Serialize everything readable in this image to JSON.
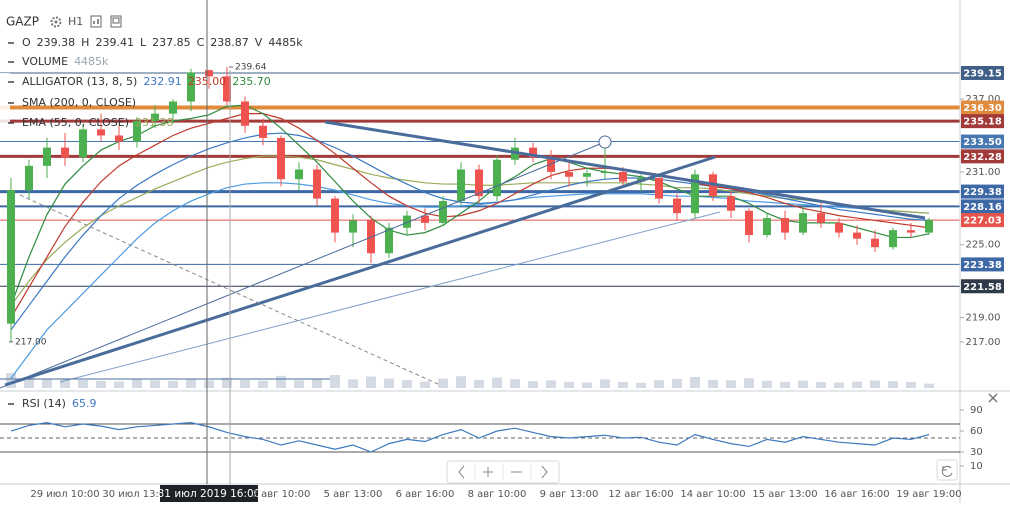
{
  "symbol": "GAZP",
  "interval": "H1",
  "chart_data": {
    "type": "candlestick",
    "x": [
      null,
      null,
      null,
      "29 июл 10:00",
      null,
      null,
      null,
      "30 июл 13:00",
      null,
      null,
      null,
      "31 июл 2019 16:00",
      null,
      null,
      null,
      "2 авг 10:00",
      null,
      null,
      null,
      "5 авг 13:00",
      null,
      null,
      null,
      "6 авг 16:00",
      null,
      null,
      null,
      "8 авг 10:00",
      null,
      null,
      null,
      "9 авг 13:00",
      null,
      null,
      null,
      "12 авг 16:00",
      null,
      null,
      null,
      "14 авг 10:00",
      null,
      null,
      null,
      "15 авг 13:00",
      null,
      null,
      null,
      "16 авг 16:00",
      null,
      null,
      null,
      "19 авг 19:00"
    ],
    "ohlc_labels": [
      "O",
      "H",
      "L",
      "C",
      "V"
    ],
    "ohlc": {
      "open": [
        218.5,
        229.5,
        231.5,
        233.0,
        232.2,
        234.5,
        234.0,
        233.5,
        235.2,
        235.8,
        236.8,
        239.38,
        238.87,
        236.8,
        234.8,
        233.8,
        230.4,
        231.2,
        228.8,
        226.0,
        227.0,
        224.3,
        226.4,
        227.4,
        226.8,
        228.6,
        231.2,
        229.0,
        232.0,
        233.0,
        232.2,
        231.0,
        230.6,
        230.9,
        231.0,
        230.2,
        230.5,
        228.8,
        227.6,
        230.8,
        229.0,
        227.8,
        225.8,
        227.2,
        226.0,
        227.6,
        226.8,
        226.0,
        225.5,
        224.8,
        226.2,
        226.0
      ],
      "high": [
        230.5,
        232.0,
        233.8,
        234.2,
        235.0,
        235.8,
        234.8,
        235.5,
        236.5,
        237.0,
        239.5,
        239.41,
        239.64,
        237.2,
        235.4,
        234.0,
        231.8,
        231.6,
        229.0,
        227.5,
        227.4,
        226.8,
        227.8,
        228.0,
        229.0,
        231.8,
        231.6,
        232.4,
        233.8,
        233.4,
        232.8,
        231.8,
        231.2,
        233.6,
        231.4,
        230.8,
        230.8,
        229.2,
        231.2,
        231.0,
        229.4,
        228.0,
        227.6,
        227.8,
        228.2,
        228.4,
        227.2,
        226.6,
        226.2,
        226.4,
        226.8,
        227.2
      ],
      "low": [
        217.0,
        228.8,
        230.5,
        231.5,
        231.8,
        233.5,
        232.8,
        233.0,
        234.6,
        235.0,
        236.0,
        237.85,
        236.5,
        234.2,
        233.2,
        229.8,
        229.5,
        228.2,
        225.2,
        224.8,
        223.5,
        223.9,
        225.8,
        226.2,
        226.5,
        228.2,
        228.4,
        228.6,
        231.6,
        231.8,
        230.4,
        229.8,
        229.8,
        230.4,
        229.8,
        229.4,
        228.4,
        227.0,
        227.2,
        228.6,
        227.2,
        225.2,
        225.6,
        225.4,
        225.8,
        226.4,
        225.6,
        225.0,
        224.4,
        224.6,
        225.6,
        225.8
      ],
      "close": [
        229.5,
        231.5,
        233.0,
        232.2,
        234.5,
        234.0,
        233.5,
        235.2,
        235.8,
        236.8,
        239.2,
        238.87,
        236.8,
        234.8,
        233.8,
        230.4,
        231.2,
        228.8,
        226.0,
        227.0,
        224.3,
        226.4,
        227.4,
        226.8,
        228.6,
        231.2,
        229.0,
        232.0,
        233.0,
        232.2,
        231.0,
        230.6,
        230.9,
        231.0,
        230.2,
        230.5,
        228.8,
        227.6,
        230.8,
        229.0,
        227.8,
        225.8,
        227.2,
        226.0,
        227.6,
        226.8,
        226.0,
        225.5,
        224.8,
        226.2,
        226.0,
        227.03
      ]
    },
    "colors": {
      "up": "#4caf50",
      "down": "#ef5350"
    },
    "ylim": [
      213.2,
      245.16
    ],
    "yticks": [
      {
        "value": 217,
        "label": "217.00"
      },
      {
        "value": 219,
        "label": "219.00"
      },
      {
        "value": 225,
        "label": "225.00"
      },
      {
        "value": 231,
        "label": "231.00"
      },
      {
        "value": 237,
        "label": "237.00"
      }
    ],
    "levels": [
      {
        "value": 239.15,
        "color": "#3f5f86"
      },
      {
        "value": 236.3,
        "label": "236.30",
        "color": "#e08a3c"
      },
      {
        "value": 235.18,
        "color": "#a33a3a"
      },
      {
        "value": 233.5,
        "label": "233.50",
        "color": "#4677b0"
      },
      {
        "value": 232.28,
        "color": "#a33a3a"
      },
      {
        "value": 229.38,
        "color": "#3d68a5"
      },
      {
        "value": 228.16,
        "color": "#3d68a5"
      },
      {
        "value": 227.03,
        "color": "#e5534b"
      },
      {
        "value": 223.38,
        "color": "#3d68a5"
      },
      {
        "value": 221.58,
        "color": "#2f3b4a"
      }
    ],
    "annotations": [
      {
        "value": 239.64
      },
      {
        "value": 217,
        "label": "217.00"
      }
    ],
    "volume": {
      "name": "VOLUME",
      "color": "#d3dae3",
      "ylim": [
        0,
        36000
      ],
      "legend": {
        "value": 4485,
        "label": "4485k"
      },
      "values": [
        9000,
        6500,
        5200,
        5800,
        4800,
        4200,
        3900,
        5100,
        4600,
        4300,
        5200,
        4485,
        6200,
        4800,
        4400,
        7300,
        4600,
        5400,
        7800,
        5200,
        6900,
        5600,
        4700,
        3800,
        5600,
        7100,
        4900,
        6200,
        5300,
        4100,
        4600,
        3700,
        3300,
        5200,
        3600,
        3100,
        4700,
        5400,
        6600,
        4900,
        4600,
        5900,
        4300,
        3700,
        4400,
        3500,
        3300,
        3800,
        4500,
        4100,
        3600,
        2600
      ]
    },
    "alligator": {
      "name": "ALLIGATOR (13, 8, 5)",
      "legend": [
        232.91,
        {
          "value": 235,
          "label": "235.00"
        },
        {
          "value": 235.7,
          "label": "235.70"
        }
      ],
      "series": [
        {
          "color": "#3b78c4",
          "values": [
            218,
            220,
            222,
            224,
            225.8,
            227.4,
            228.8,
            229.9,
            230.8,
            231.6,
            232.3,
            232.91,
            233.4,
            233.8,
            234.1,
            234.2,
            234.0,
            233.6,
            233.0,
            232.3,
            231.5,
            230.7,
            230.0,
            229.3,
            228.8,
            228.5,
            228.4,
            228.5,
            228.7,
            229.1,
            229.5,
            229.9,
            230.2,
            230.4,
            230.5,
            230.5,
            230.4,
            230.2,
            230.0,
            229.8,
            229.6,
            229.4,
            229.1,
            228.8,
            228.5,
            228.2,
            227.9,
            227.7,
            227.5,
            227.3,
            227.1,
            227.0
          ]
        },
        {
          "color": "#c0392b",
          "values": [
            219,
            221.5,
            224,
            226.5,
            228.5,
            230.2,
            231.5,
            232.4,
            233.2,
            234.0,
            234.6,
            235.0,
            235.4,
            235.8,
            235.8,
            235.4,
            234.6,
            233.6,
            232.5,
            231.3,
            230.1,
            229.0,
            228.2,
            227.6,
            227.3,
            227.4,
            227.8,
            228.4,
            229.2,
            230.0,
            230.7,
            231.1,
            231.3,
            231.3,
            231.2,
            231.0,
            230.8,
            230.5,
            230.1,
            229.8,
            229.6,
            229.3,
            228.9,
            228.4,
            228.0,
            227.7,
            227.4,
            227.2,
            227.0,
            226.8,
            226.6,
            226.4
          ]
        },
        {
          "color": "#2e8b3e",
          "values": [
            220,
            224,
            227.5,
            230,
            231.5,
            232.8,
            233.5,
            234.0,
            234.8,
            235.2,
            235.4,
            235.7,
            236.4,
            236.5,
            235.8,
            234.6,
            233.2,
            231.8,
            230.2,
            228.6,
            227.2,
            226.2,
            225.8,
            226.0,
            226.6,
            227.6,
            228.6,
            229.8,
            230.6,
            231.6,
            232.1,
            231.8,
            231.3,
            231.0,
            230.8,
            230.6,
            230.2,
            229.6,
            229.0,
            229.0,
            229.0,
            228.4,
            227.6,
            227.0,
            226.8,
            226.8,
            226.8,
            226.4,
            226.0,
            225.6,
            225.6,
            225.9
          ]
        }
      ]
    },
    "sma": {
      "name": "SMA (200, 0, CLOSE)",
      "color": "#4a9be0",
      "values": [
        214,
        216,
        218,
        219.5,
        221,
        222.5,
        224,
        225.5,
        226.8,
        227.8,
        228.6,
        229.2,
        229.7,
        230.0,
        230.1,
        230.1,
        230.0,
        229.8,
        229.5,
        229.1,
        228.7,
        228.4,
        228.2,
        228.1,
        228.1,
        228.2,
        228.3,
        228.5,
        228.7,
        228.9,
        229.0,
        229.1,
        229.2,
        229.2,
        229.2,
        229.2,
        229.1,
        229.0,
        229.0,
        228.9,
        228.8,
        228.6,
        228.5,
        228.4,
        228.3,
        228.2,
        228.1,
        228.0,
        227.9,
        227.8,
        227.7,
        227.6
      ]
    },
    "ema": {
      "name": "EMA (55, 0, CLOSE)",
      "color": "#9aab5a",
      "values": [
        220,
        222,
        223.8,
        225.2,
        226.4,
        227.4,
        228.2,
        228.9,
        229.6,
        230.2,
        230.8,
        231.38,
        231.8,
        232.1,
        232.3,
        232.3,
        232.2,
        232.0,
        231.6,
        231.2,
        230.8,
        230.5,
        230.3,
        230.1,
        230.0,
        230.0,
        229.9,
        229.9,
        230.0,
        230.1,
        230.1,
        230.1,
        230.1,
        230.1,
        230.1,
        230.0,
        229.9,
        229.7,
        229.7,
        229.6,
        229.4,
        229.2,
        229.0,
        228.8,
        228.7,
        228.5,
        228.3,
        228.1,
        227.9,
        227.8,
        227.7,
        227.6
      ]
    },
    "rsi": {
      "name": "RSI (14)",
      "color": "#3f79c0",
      "ylim": [
        -10,
        112.9
      ],
      "yticks": [
        10,
        30,
        60,
        90
      ],
      "levels": [
        70,
        50,
        30
      ],
      "values": [
        60,
        68,
        72,
        66,
        70,
        67,
        62,
        66,
        68,
        70,
        72,
        65.9,
        58,
        52,
        48,
        40,
        46,
        40,
        34,
        40,
        30,
        42,
        48,
        45,
        55,
        62,
        50,
        60,
        64,
        58,
        52,
        50,
        52,
        54,
        50,
        51,
        44,
        40,
        55,
        48,
        42,
        38,
        48,
        44,
        52,
        48,
        44,
        42,
        40,
        50,
        48,
        55
      ]
    }
  }
}
